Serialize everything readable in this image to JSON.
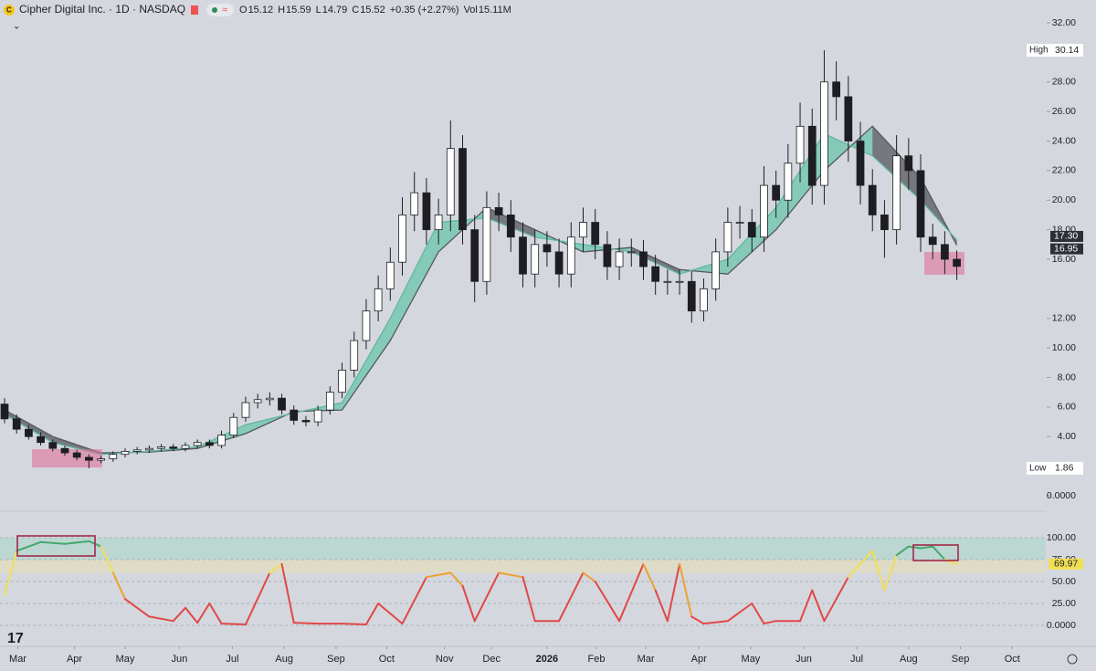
{
  "header": {
    "symbol": "Cipher Digital Inc. · 1D · NASDAQ",
    "ohlc": [
      {
        "key": "O",
        "value": "15.12"
      },
      {
        "key": "H",
        "value": "15.59"
      },
      {
        "key": "L",
        "value": "14.79"
      },
      {
        "key": "C",
        "value": "15.52"
      }
    ],
    "change": "+0.35 (+2.27%)",
    "volume_key": "Vol",
    "volume": "15.11M"
  },
  "chart_data": [
    {
      "type": "candlestick",
      "up_color": "#ffffff",
      "down_color": "#1e1e22",
      "wick_color": "#1e1e22",
      "xlim": [
        0,
        86
      ],
      "ylim": [
        0,
        32
      ],
      "xticks": [
        {
          "value": 1.1,
          "label": "Mar"
        },
        {
          "value": 5.8,
          "label": "Apr"
        },
        {
          "value": 10.0,
          "label": "May"
        },
        {
          "value": 14.5,
          "label": "Jun"
        },
        {
          "value": 18.9,
          "label": "Jul"
        },
        {
          "value": 23.2,
          "label": "Aug"
        },
        {
          "value": 27.5,
          "label": "Sep"
        },
        {
          "value": 31.7,
          "label": "Oct"
        },
        {
          "value": 36.5,
          "label": "Nov"
        },
        {
          "value": 40.4,
          "label": "Dec"
        },
        {
          "value": 45.0,
          "label": "2026"
        },
        {
          "value": 49.1,
          "label": "Feb"
        },
        {
          "value": 53.2,
          "label": "Mar"
        },
        {
          "value": 57.6,
          "label": "Apr"
        },
        {
          "value": 61.9,
          "label": "May"
        },
        {
          "value": 66.3,
          "label": "Jun"
        },
        {
          "value": 70.7,
          "label": "Jul"
        },
        {
          "value": 75.0,
          "label": "Aug"
        },
        {
          "value": 79.3,
          "label": "Sep"
        },
        {
          "value": 83.6,
          "label": "Oct"
        }
      ],
      "yticks": [
        {
          "value": 0,
          "label": "0.0000"
        },
        {
          "value": 4,
          "label": "4.00"
        },
        {
          "value": 6,
          "label": "6.00"
        },
        {
          "value": 8,
          "label": "8.00"
        },
        {
          "value": 10,
          "label": "10.00"
        },
        {
          "value": 12,
          "label": "12.00"
        },
        {
          "value": 16,
          "label": "16.00"
        },
        {
          "value": 18,
          "label": "18.00"
        },
        {
          "value": 20,
          "label": "20.00"
        },
        {
          "value": 22,
          "label": "22.00"
        },
        {
          "value": 24,
          "label": "24.00"
        },
        {
          "value": 26,
          "label": "26.00"
        },
        {
          "value": 28,
          "label": "28.00"
        },
        {
          "value": 32,
          "label": "32.00"
        }
      ],
      "x": [
        0,
        1,
        2,
        3,
        4,
        5,
        6,
        7,
        8,
        9,
        10,
        11,
        12,
        13,
        14,
        15,
        16,
        17,
        18,
        19,
        20,
        21,
        22,
        23,
        24,
        25,
        26,
        27,
        28,
        29,
        30,
        31,
        32,
        33,
        34,
        35,
        36,
        37,
        38,
        39,
        40,
        41,
        42,
        43,
        44,
        45,
        46,
        47,
        48,
        49,
        50,
        51,
        52,
        53,
        54,
        55,
        56,
        57,
        58,
        59,
        60,
        61,
        62,
        63,
        64,
        65,
        66,
        67,
        68,
        69,
        70,
        71,
        72,
        73,
        74,
        75,
        76,
        77,
        78,
        79
      ],
      "open": [
        6.2,
        5.2,
        4.5,
        4.0,
        3.6,
        3.2,
        2.9,
        2.6,
        2.4,
        2.5,
        2.8,
        3.0,
        3.1,
        3.2,
        3.3,
        3.2,
        3.4,
        3.6,
        3.4,
        4.1,
        5.3,
        6.3,
        6.5,
        6.6,
        5.8,
        5.1,
        5.0,
        5.8,
        7.0,
        8.5,
        10.5,
        12.5,
        14.0,
        15.8,
        19.0,
        20.5,
        18.0,
        19.0,
        23.5,
        18.0,
        14.5,
        19.5,
        19.0,
        17.5,
        15.0,
        17.0,
        16.5,
        15.0,
        17.5,
        18.5,
        17.0,
        15.5,
        16.5,
        16.5,
        15.5,
        14.5,
        14.5,
        14.5,
        12.5,
        14.0,
        16.5,
        18.5,
        18.5,
        17.5,
        21.0,
        20.0,
        22.5,
        25.0,
        21.0,
        28.0,
        27.0,
        24.0,
        21.0,
        19.0,
        18.0,
        23.0,
        22.0,
        17.5,
        17.0,
        16.0
      ],
      "high": [
        6.6,
        5.5,
        4.8,
        4.3,
        3.8,
        3.4,
        3.1,
        2.8,
        2.7,
        3.0,
        3.2,
        3.3,
        3.4,
        3.5,
        3.5,
        3.6,
        3.8,
        3.8,
        4.4,
        5.6,
        6.7,
        6.9,
        7.0,
        6.9,
        6.1,
        5.4,
        6.1,
        7.4,
        9.0,
        11.1,
        13.3,
        14.9,
        16.8,
        20.2,
        21.9,
        21.5,
        20.1,
        25.4,
        24.4,
        19.0,
        20.6,
        20.5,
        20.0,
        18.5,
        18.0,
        17.9,
        17.4,
        18.5,
        19.5,
        19.4,
        17.9,
        17.4,
        17.4,
        17.3,
        16.3,
        15.3,
        15.3,
        15.2,
        14.7,
        17.4,
        19.5,
        19.6,
        19.4,
        22.3,
        22.0,
        23.8,
        26.6,
        26.2,
        30.14,
        29.4,
        28.4,
        25.3,
        22.1,
        20.0,
        24.4,
        24.2,
        23.1,
        18.4,
        17.9,
        16.6
      ],
      "low": [
        4.9,
        4.2,
        3.8,
        3.4,
        3.0,
        2.7,
        2.4,
        1.86,
        2.2,
        2.3,
        2.6,
        2.8,
        2.9,
        3.0,
        3.0,
        3.0,
        3.2,
        3.2,
        3.2,
        3.9,
        5.0,
        5.9,
        6.1,
        5.5,
        4.8,
        4.7,
        4.7,
        5.5,
        6.6,
        8.0,
        9.9,
        11.8,
        13.2,
        14.9,
        17.9,
        17.0,
        17.0,
        17.9,
        17.0,
        13.1,
        13.6,
        17.9,
        16.5,
        14.1,
        14.1,
        15.5,
        14.1,
        14.1,
        16.5,
        16.0,
        14.6,
        14.6,
        15.5,
        14.6,
        13.6,
        13.6,
        13.6,
        11.7,
        11.8,
        13.2,
        15.5,
        17.4,
        16.5,
        16.5,
        18.8,
        18.8,
        21.2,
        19.7,
        19.7,
        25.4,
        22.6,
        19.7,
        17.9,
        16.1,
        17.0,
        20.7,
        16.5,
        16.0,
        15.0,
        14.6
      ],
      "close": [
        5.2,
        4.5,
        4.0,
        3.6,
        3.2,
        2.9,
        2.6,
        2.4,
        2.5,
        2.8,
        3.0,
        3.1,
        3.2,
        3.3,
        3.2,
        3.4,
        3.6,
        3.4,
        4.1,
        5.3,
        6.3,
        6.5,
        6.6,
        5.8,
        5.1,
        5.0,
        5.8,
        7.0,
        8.5,
        10.5,
        12.5,
        14.0,
        15.8,
        19.0,
        20.5,
        18.0,
        19.0,
        23.5,
        18.0,
        14.5,
        19.5,
        19.0,
        17.5,
        15.0,
        17.0,
        16.5,
        15.0,
        17.5,
        18.5,
        17.0,
        15.5,
        16.5,
        16.5,
        15.5,
        14.5,
        14.5,
        14.5,
        12.5,
        14.0,
        16.5,
        18.5,
        18.5,
        17.5,
        21.0,
        20.0,
        22.5,
        25.0,
        21.0,
        28.0,
        27.0,
        24.0,
        21.0,
        19.0,
        18.0,
        23.0,
        22.0,
        17.5,
        17.0,
        16.0,
        15.52
      ],
      "band": {
        "x": [
          0,
          4,
          8,
          12,
          16,
          20,
          24,
          28,
          32,
          36,
          40,
          44,
          48,
          52,
          56,
          60,
          64,
          68,
          72,
          76,
          79
        ],
        "fast": [
          5.5,
          3.6,
          2.8,
          3.0,
          3.3,
          4.8,
          5.6,
          6.3,
          12.0,
          18.5,
          18.8,
          17.5,
          17.0,
          16.5,
          15.0,
          16.0,
          19.5,
          24.5,
          23.0,
          20.0,
          17.3
        ],
        "slow": [
          5.8,
          4.0,
          2.9,
          2.95,
          3.2,
          4.2,
          5.7,
          5.8,
          10.5,
          16.5,
          19.5,
          18.0,
          16.5,
          16.8,
          15.3,
          15.0,
          18.0,
          22.0,
          25.0,
          21.5,
          16.95
        ],
        "fast_color": "#5fb8a0",
        "slow_color": "#55585e",
        "up_fill": "#7cc9b3",
        "down_fill": "#6b6e74"
      },
      "last_labels": [
        {
          "value": 17.3,
          "label": "17.30"
        },
        {
          "value": 16.95,
          "label": "16.95"
        }
      ],
      "high_mark": {
        "key": "High",
        "value": 30.14
      },
      "low_mark": {
        "key": "Low",
        "value": 1.86
      }
    },
    {
      "type": "line",
      "xlim": [
        0,
        86
      ],
      "ylim": [
        0,
        100
      ],
      "yticks": [
        {
          "value": 0,
          "label": "0.0000"
        },
        {
          "value": 25,
          "label": "25.00"
        },
        {
          "value": 50,
          "label": "50.00"
        },
        {
          "value": 75,
          "label": "75.00"
        },
        {
          "value": 100,
          "label": "100.00"
        }
      ],
      "zones": [
        {
          "from": 75,
          "to": 100,
          "color": "#bcd6d2"
        },
        {
          "from": 60,
          "to": 75,
          "color": "#dedcc6"
        }
      ],
      "color_levels": [
        {
          "min": 0,
          "color": "#e04848"
        },
        {
          "min": 40,
          "color": "#f0a032"
        },
        {
          "min": 60,
          "color": "#f0df55"
        },
        {
          "min": 80,
          "color": "#45a86e"
        }
      ],
      "x": [
        0,
        1,
        3,
        5,
        7,
        8,
        9,
        10,
        12,
        14,
        15,
        16,
        17,
        18,
        20,
        22,
        23,
        24,
        26,
        28,
        30,
        31,
        33,
        35,
        37,
        38,
        39,
        41,
        43,
        44,
        46,
        48,
        49,
        51,
        53,
        54,
        55,
        56,
        57,
        58,
        60,
        62,
        63,
        64,
        66,
        67,
        68,
        70,
        72,
        73,
        74,
        75,
        76,
        77,
        78,
        79
      ],
      "values": [
        35,
        85,
        95,
        93,
        96,
        90,
        60,
        30,
        10,
        5,
        20,
        3,
        25,
        2,
        1,
        60,
        70,
        3,
        2,
        2,
        1,
        25,
        2,
        55,
        60,
        45,
        5,
        60,
        55,
        5,
        5,
        60,
        50,
        5,
        70,
        40,
        5,
        70,
        10,
        2,
        5,
        25,
        2,
        5,
        5,
        40,
        5,
        55,
        85,
        40,
        80,
        90,
        88,
        90,
        75,
        69.97
      ],
      "last_label": {
        "value": 69.97,
        "label": "69.97"
      }
    }
  ]
}
